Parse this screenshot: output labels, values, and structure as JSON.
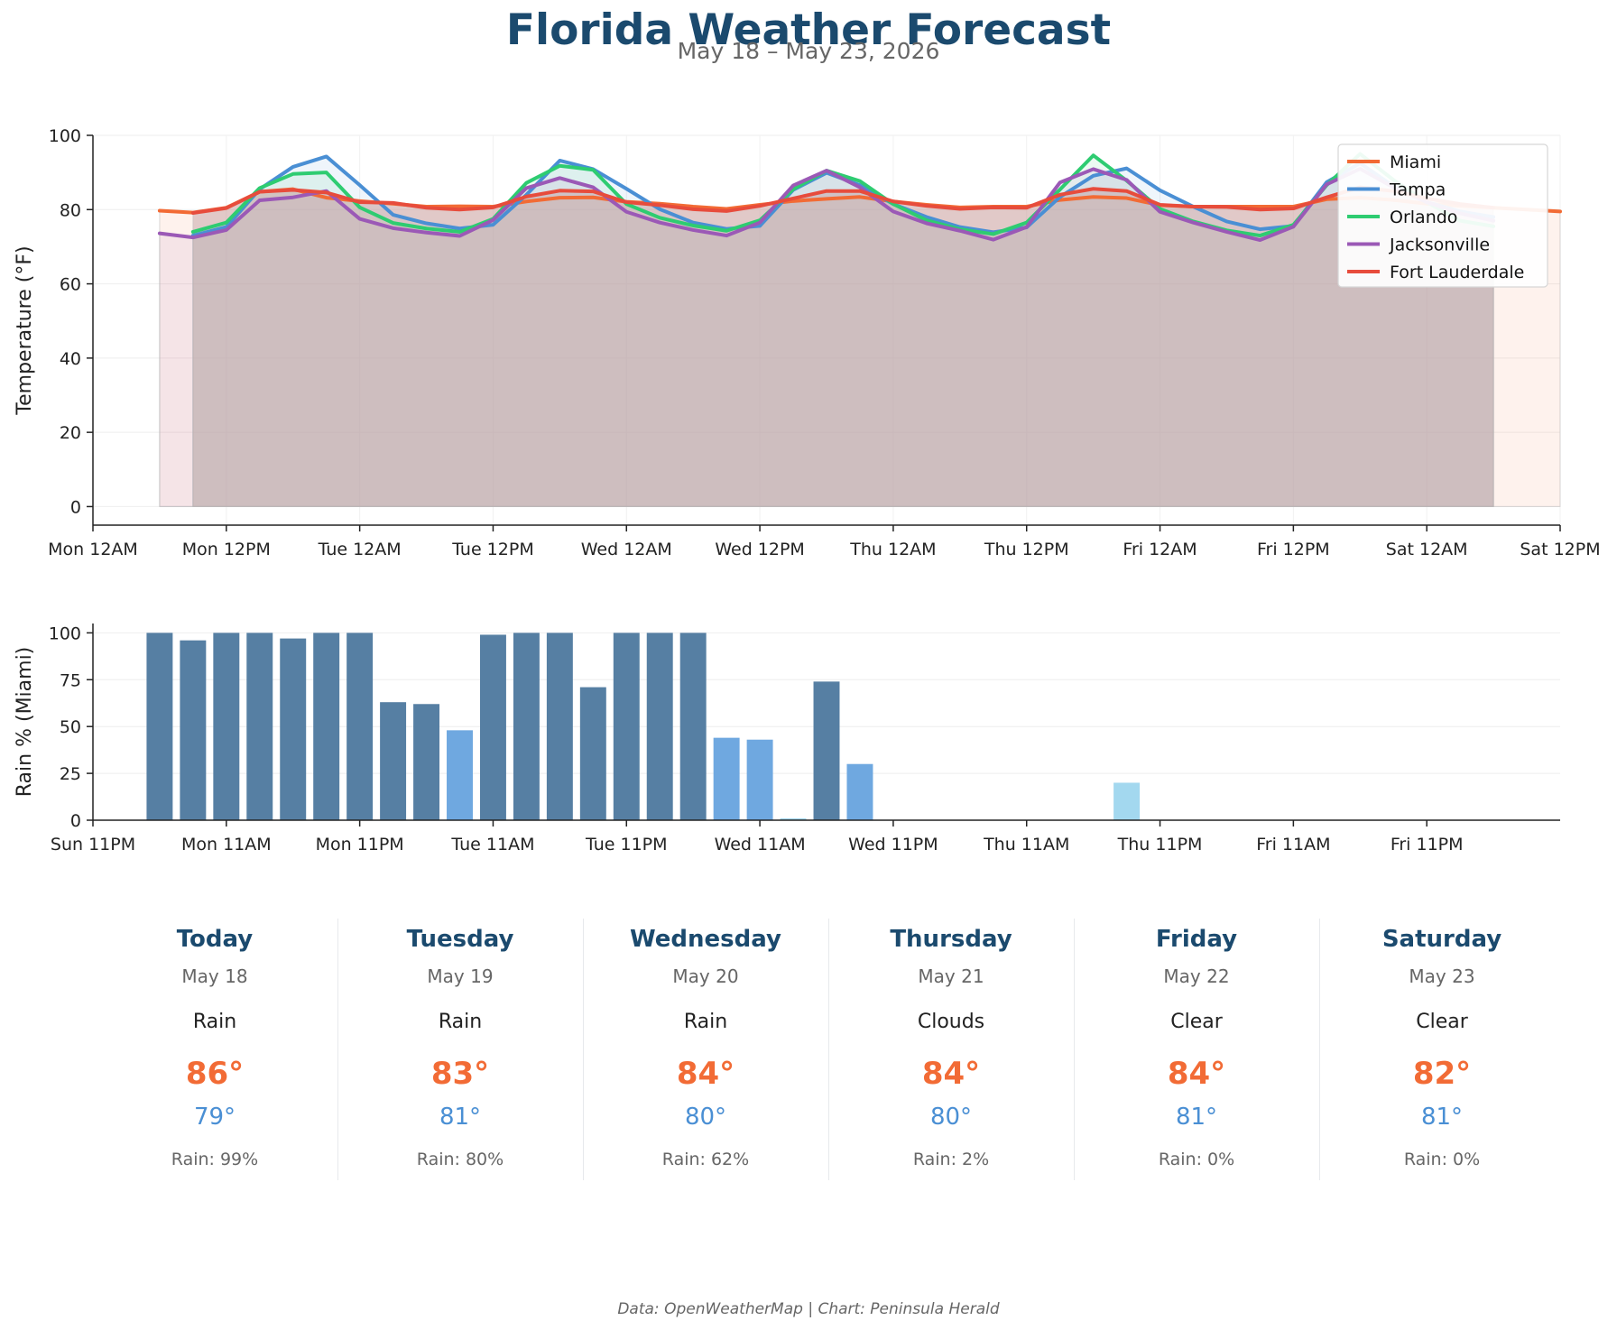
{
  "header": {
    "title": "Florida Weather Forecast",
    "subtitle": "May 18 – May 23, 2026"
  },
  "chart_data": [
    {
      "type": "line",
      "ylabel": "Temperature (°F)",
      "ylim": [
        -5,
        100
      ],
      "yticks": [
        0,
        20,
        40,
        60,
        80,
        100
      ],
      "xlim": [
        0,
        132
      ],
      "x_tick_labels": [
        "Mon 12AM",
        "Mon 12PM",
        "Tue 12AM",
        "Tue 12PM",
        "Wed 12AM",
        "Wed 12PM",
        "Thu 12AM",
        "Thu 12PM",
        "Fri 12AM",
        "Fri 12PM",
        "Sat 12AM",
        "Sat 12PM"
      ],
      "x_tick_positions": [
        0,
        12,
        24,
        36,
        48,
        60,
        72,
        84,
        96,
        108,
        120,
        132
      ],
      "legend_position": "top-right",
      "grid": true,
      "series": [
        {
          "name": "Miami",
          "color": "#f26b35",
          "start": 6,
          "step": 3,
          "values": [
            79.7,
            79.2,
            80.5,
            84.8,
            85.5,
            83.2,
            82.3,
            81.6,
            80.8,
            80.9,
            80.8,
            82.2,
            83.2,
            83.3,
            82.1,
            81.6,
            80.8,
            80.2,
            81.3,
            82.3,
            82.9,
            83.4,
            82.2,
            81.3,
            80.6,
            80.8,
            80.8,
            82.6,
            83.4,
            83.1,
            81.2,
            80.8,
            80.8,
            80.8,
            80.8,
            82.8,
            83.2,
            82.6,
            81.6,
            81.0,
            80.5,
            80.0,
            79.5
          ]
        },
        {
          "name": "Tampa",
          "color": "#4a8fd4",
          "start": 9,
          "step": 3,
          "values": [
            73.0,
            75.3,
            85.5,
            91.5,
            94.3,
            86.6,
            78.6,
            76.3,
            74.9,
            75.9,
            84.0,
            93.2,
            90.9,
            85.6,
            80.1,
            76.5,
            74.8,
            75.6,
            85.3,
            89.9,
            86.6,
            81.5,
            78.0,
            75.3,
            73.9,
            75.2,
            83.4,
            89.1,
            91.1,
            85.2,
            80.8,
            76.8,
            74.7,
            75.6,
            87.4,
            92.5,
            86.3,
            82.0,
            79.5,
            78.0
          ]
        },
        {
          "name": "Orlando",
          "color": "#2ecc71",
          "start": 9,
          "step": 3,
          "values": [
            74.0,
            76.5,
            85.8,
            89.6,
            90.0,
            80.6,
            76.4,
            74.9,
            74.0,
            77.5,
            87.2,
            91.8,
            90.7,
            81.5,
            77.8,
            75.7,
            74.3,
            77.1,
            85.5,
            90.5,
            87.7,
            81.5,
            77.1,
            74.7,
            73.4,
            76.5,
            85.4,
            94.6,
            87.8,
            80.2,
            76.8,
            74.4,
            73.0,
            75.9,
            86.6,
            95.0,
            88.0,
            82.0,
            77.0,
            75.5
          ]
        },
        {
          "name": "Jacksonville",
          "color": "#9b59b6",
          "start": 6,
          "step": 3,
          "values": [
            73.6,
            72.5,
            74.5,
            82.5,
            83.3,
            85.0,
            77.5,
            75.0,
            73.8,
            72.9,
            77.2,
            85.8,
            88.5,
            86.0,
            79.4,
            76.5,
            74.5,
            73.0,
            76.5,
            86.5,
            90.5,
            86.0,
            79.5,
            76.3,
            74.3,
            71.9,
            75.3,
            87.3,
            90.9,
            88.0,
            79.4,
            76.5,
            74.0,
            71.8,
            75.4,
            86.8,
            91.0,
            86.0,
            82.0,
            79.0,
            77.0
          ]
        },
        {
          "name": "Fort Lauderdale",
          "color": "#e74c3c",
          "start": 9,
          "step": 3,
          "values": [
            79.1,
            80.4,
            84.8,
            85.3,
            84.6,
            82.0,
            81.8,
            80.5,
            80.0,
            80.6,
            83.5,
            85.1,
            84.9,
            82.0,
            81.2,
            80.1,
            79.6,
            81.0,
            83.0,
            85.0,
            85.0,
            82.2,
            81.0,
            80.2,
            80.6,
            80.5,
            84.0,
            85.6,
            85.0,
            81.3,
            80.8,
            80.7,
            80.0,
            80.3,
            83.3,
            86.0,
            85.0,
            83.0,
            81.5,
            80.5
          ]
        }
      ]
    },
    {
      "type": "bar",
      "ylabel": "Rain % (Miami)",
      "ylim": [
        0,
        105
      ],
      "yticks": [
        0,
        25,
        50,
        75,
        100
      ],
      "xlim": [
        -1,
        131
      ],
      "x_tick_labels": [
        "Sun 11PM",
        "Mon 11AM",
        "Mon 11PM",
        "Tue 11AM",
        "Tue 11PM",
        "Wed 11AM",
        "Wed 11PM",
        "Thu 11AM",
        "Thu 11PM",
        "Fri 11AM",
        "Fri 11PM"
      ],
      "x_tick_positions": [
        -1,
        11,
        23,
        35,
        47,
        59,
        71,
        83,
        95,
        107,
        119
      ],
      "grid": true,
      "bar_start": 5,
      "bar_step": 3,
      "levels": {
        "high": "#567fa3",
        "medium": "#6fa8e0",
        "low": "#a3d8ef"
      },
      "values": [
        100,
        96,
        100,
        100,
        97,
        100,
        100,
        63,
        62,
        48,
        99,
        100,
        100,
        71,
        100,
        100,
        100,
        44,
        43,
        1,
        74,
        30,
        0,
        0,
        0,
        0,
        0,
        0,
        0,
        20,
        0,
        0,
        0,
        0,
        0,
        0,
        0,
        0,
        0,
        0,
        0,
        0
      ],
      "level_per_bar": [
        "high",
        "high",
        "high",
        "high",
        "high",
        "high",
        "high",
        "high",
        "high",
        "medium",
        "high",
        "high",
        "high",
        "high",
        "high",
        "high",
        "high",
        "medium",
        "medium",
        "low",
        "high",
        "medium",
        "low",
        "low",
        "low",
        "low",
        "low",
        "low",
        "low",
        "low",
        "low",
        "low",
        "low",
        "low",
        "low",
        "low",
        "low",
        "low",
        "low",
        "low",
        "low",
        "low"
      ]
    }
  ],
  "cards": [
    {
      "day": "Today",
      "date": "May 18",
      "condition": "Rain",
      "high": "86°",
      "low": "79°",
      "rain": "Rain: 99%"
    },
    {
      "day": "Tuesday",
      "date": "May 19",
      "condition": "Rain",
      "high": "83°",
      "low": "81°",
      "rain": "Rain: 80%"
    },
    {
      "day": "Wednesday",
      "date": "May 20",
      "condition": "Rain",
      "high": "84°",
      "low": "80°",
      "rain": "Rain: 62%"
    },
    {
      "day": "Thursday",
      "date": "May 21",
      "condition": "Clouds",
      "high": "84°",
      "low": "80°",
      "rain": "Rain: 2%"
    },
    {
      "day": "Friday",
      "date": "May 22",
      "condition": "Clear",
      "high": "84°",
      "low": "81°",
      "rain": "Rain: 0%"
    },
    {
      "day": "Saturday",
      "date": "May 23",
      "condition": "Clear",
      "high": "82°",
      "low": "81°",
      "rain": "Rain: 0%"
    }
  ],
  "footer": {
    "source": "Data: OpenWeatherMap | Chart: Peninsula Herald"
  }
}
